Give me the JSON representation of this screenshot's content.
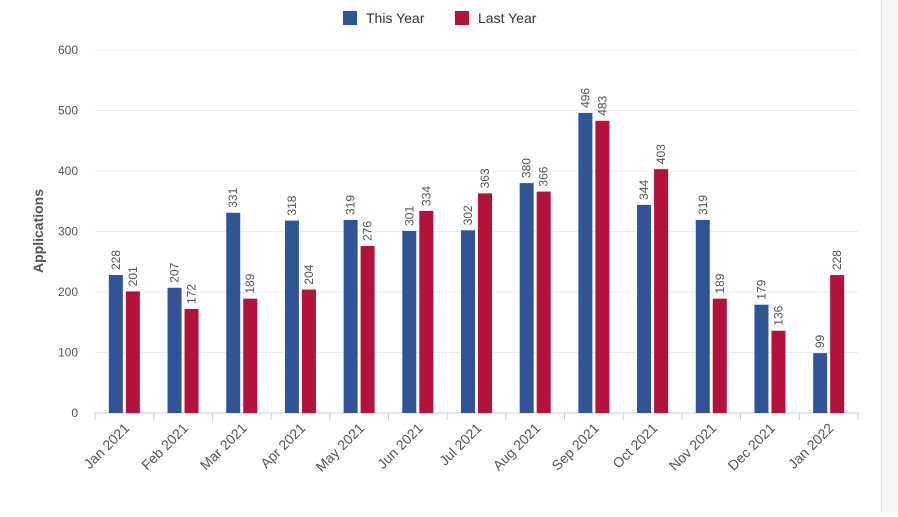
{
  "chart_data": {
    "type": "bar",
    "title": "",
    "xlabel": "",
    "ylabel": "Applications",
    "ylim": [
      0,
      600
    ],
    "yticks": [
      0,
      100,
      200,
      300,
      400,
      500,
      600
    ],
    "categories": [
      "Jan 2021",
      "Feb 2021",
      "Mar 2021",
      "Apr 2021",
      "May 2021",
      "Jun 2021",
      "Jul 2021",
      "Aug 2021",
      "Sep 2021",
      "Oct 2021",
      "Nov 2021",
      "Dec 2021",
      "Jan 2022"
    ],
    "series": [
      {
        "name": "This Year",
        "color": "#2f5597",
        "values": [
          228,
          207,
          331,
          318,
          319,
          301,
          302,
          380,
          496,
          344,
          319,
          179,
          99
        ]
      },
      {
        "name": "Last Year",
        "color": "#b4123a",
        "values": [
          201,
          172,
          189,
          204,
          276,
          334,
          363,
          366,
          483,
          403,
          189,
          136,
          228
        ]
      }
    ],
    "legend": "top-center",
    "grid": true
  }
}
